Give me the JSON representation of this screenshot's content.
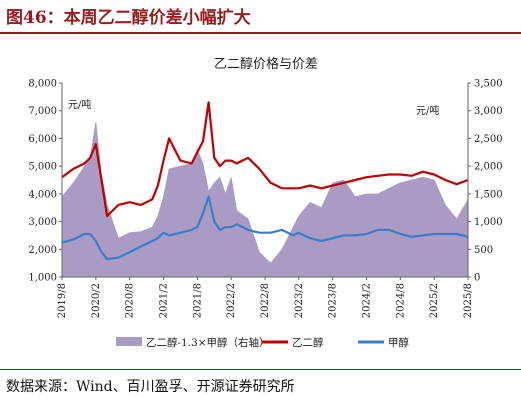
{
  "figure_title": "图46：本周乙二醇价差小幅扩大",
  "source_text": "数据来源：Wind、百川盈孚、开源证券研究所",
  "colors": {
    "brand": "#9b1c1f",
    "spread": "#a99bc4",
    "meg": "#c00000",
    "methanol": "#3b7dc8"
  },
  "chart_data": {
    "type": "line",
    "title": "乙二醇价格与价差",
    "ylabel_left": "元/吨",
    "ylabel_right": "元/吨",
    "y_left_lim": [
      1000,
      8000
    ],
    "y_right_lim": [
      0,
      3500
    ],
    "y_left_ticks": [
      "1,000",
      "2,000",
      "3,000",
      "4,000",
      "5,000",
      "6,000",
      "7,000",
      "8,000"
    ],
    "y_right_ticks": [
      "0",
      "500",
      "1,000",
      "1,500",
      "2,000",
      "2,500",
      "3,000",
      "3,500"
    ],
    "x_ticks": [
      "2019/8",
      "2020/2",
      "2020/8",
      "2021/2",
      "2021/8",
      "2022/2",
      "2022/8",
      "2023/2",
      "2023/8",
      "2024/2",
      "2024/8",
      "2025/2",
      "2025/8"
    ],
    "x_range": [
      "2019/8",
      "2025/8"
    ],
    "grid": false,
    "legend_position": "bottom",
    "series": [
      {
        "name": "乙二醇-1.3×甲醇（右轴）",
        "type": "area",
        "axis": "right",
        "x": [
          "2019/8",
          "2019/10",
          "2019/12",
          "2020/1",
          "2020/2",
          "2020/3",
          "2020/4",
          "2020/6",
          "2020/8",
          "2020/10",
          "2020/12",
          "2021/1",
          "2021/2",
          "2021/3",
          "2021/5",
          "2021/7",
          "2021/8",
          "2021/9",
          "2021/10",
          "2021/11",
          "2021/12",
          "2022/1",
          "2022/2",
          "2022/3",
          "2022/5",
          "2022/7",
          "2022/9",
          "2022/11",
          "2023/1",
          "2023/2",
          "2023/4",
          "2023/6",
          "2023/8",
          "2023/10",
          "2023/12",
          "2024/2",
          "2024/4",
          "2024/6",
          "2024/8",
          "2024/10",
          "2024/12",
          "2025/2",
          "2025/4",
          "2025/6",
          "2025/8"
        ],
        "values": [
          1450,
          1700,
          2000,
          2150,
          2800,
          1850,
          1300,
          700,
          800,
          820,
          900,
          1100,
          1450,
          1950,
          2000,
          2050,
          2300,
          2050,
          1550,
          1700,
          1800,
          1500,
          1800,
          1200,
          1050,
          450,
          250,
          500,
          900,
          1100,
          1350,
          1250,
          1700,
          1750,
          1450,
          1500,
          1500,
          1600,
          1700,
          1750,
          1800,
          1750,
          1300,
          1050,
          1400
        ]
      },
      {
        "name": "乙二醇",
        "type": "line",
        "axis": "left",
        "x": [
          "2019/8",
          "2019/10",
          "2019/12",
          "2020/1",
          "2020/2",
          "2020/3",
          "2020/4",
          "2020/6",
          "2020/8",
          "2020/10",
          "2020/12",
          "2021/1",
          "2021/2",
          "2021/3",
          "2021/5",
          "2021/7",
          "2021/8",
          "2021/9",
          "2021/10",
          "2021/11",
          "2021/12",
          "2022/1",
          "2022/2",
          "2022/3",
          "2022/5",
          "2022/7",
          "2022/9",
          "2022/11",
          "2023/1",
          "2023/2",
          "2023/4",
          "2023/6",
          "2023/8",
          "2023/10",
          "2023/12",
          "2024/2",
          "2024/4",
          "2024/6",
          "2024/8",
          "2024/10",
          "2024/12",
          "2025/2",
          "2025/4",
          "2025/6",
          "2025/8"
        ],
        "values": [
          4600,
          4900,
          5100,
          5300,
          5800,
          4500,
          3200,
          3600,
          3700,
          3600,
          3800,
          4300,
          5200,
          6000,
          5200,
          5100,
          5500,
          5900,
          7300,
          5300,
          5000,
          5200,
          5200,
          5100,
          5300,
          4900,
          4400,
          4200,
          4200,
          4200,
          4300,
          4200,
          4300,
          4400,
          4500,
          4600,
          4650,
          4700,
          4700,
          4650,
          4800,
          4700,
          4500,
          4350,
          4500
        ]
      },
      {
        "name": "甲醇",
        "type": "line",
        "axis": "left",
        "x": [
          "2019/8",
          "2019/10",
          "2019/12",
          "2020/1",
          "2020/2",
          "2020/3",
          "2020/4",
          "2020/6",
          "2020/8",
          "2020/10",
          "2020/12",
          "2021/1",
          "2021/2",
          "2021/3",
          "2021/5",
          "2021/7",
          "2021/8",
          "2021/9",
          "2021/10",
          "2021/11",
          "2021/12",
          "2022/1",
          "2022/2",
          "2022/3",
          "2022/5",
          "2022/7",
          "2022/9",
          "2022/11",
          "2023/1",
          "2023/2",
          "2023/4",
          "2023/6",
          "2023/8",
          "2023/10",
          "2023/12",
          "2024/2",
          "2024/4",
          "2024/6",
          "2024/8",
          "2024/10",
          "2024/12",
          "2025/2",
          "2025/4",
          "2025/6",
          "2025/8"
        ],
        "values": [
          2250,
          2350,
          2550,
          2550,
          2300,
          1900,
          1650,
          1700,
          1900,
          2100,
          2300,
          2400,
          2600,
          2500,
          2600,
          2700,
          2800,
          3300,
          3900,
          3000,
          2700,
          2800,
          2800,
          2900,
          2700,
          2600,
          2600,
          2700,
          2500,
          2600,
          2400,
          2300,
          2400,
          2500,
          2500,
          2550,
          2700,
          2700,
          2550,
          2450,
          2500,
          2550,
          2550,
          2550,
          2450
        ]
      }
    ]
  }
}
